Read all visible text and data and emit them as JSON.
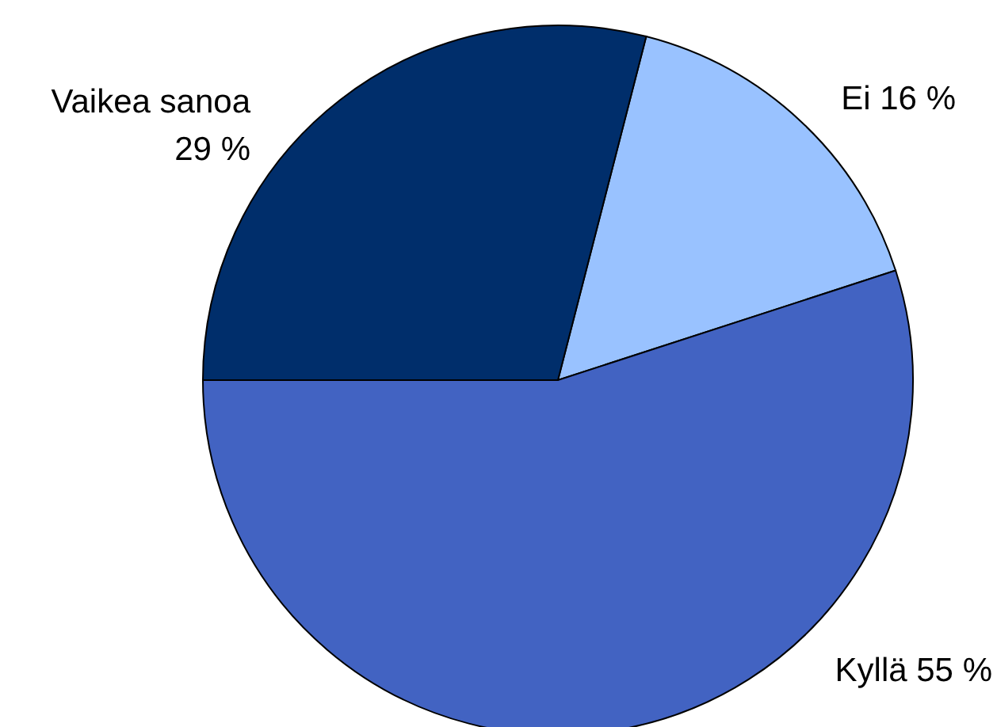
{
  "chart_data": {
    "type": "pie",
    "categories": [
      "Ei",
      "Kyllä",
      "Vaikea sanoa"
    ],
    "values": [
      16,
      55,
      29
    ],
    "value_labels": [
      "16 %",
      "55 %",
      "29 %"
    ],
    "colors": [
      "#99c2ff",
      "#4263c2",
      "#002e6b"
    ],
    "legend": false
  }
}
